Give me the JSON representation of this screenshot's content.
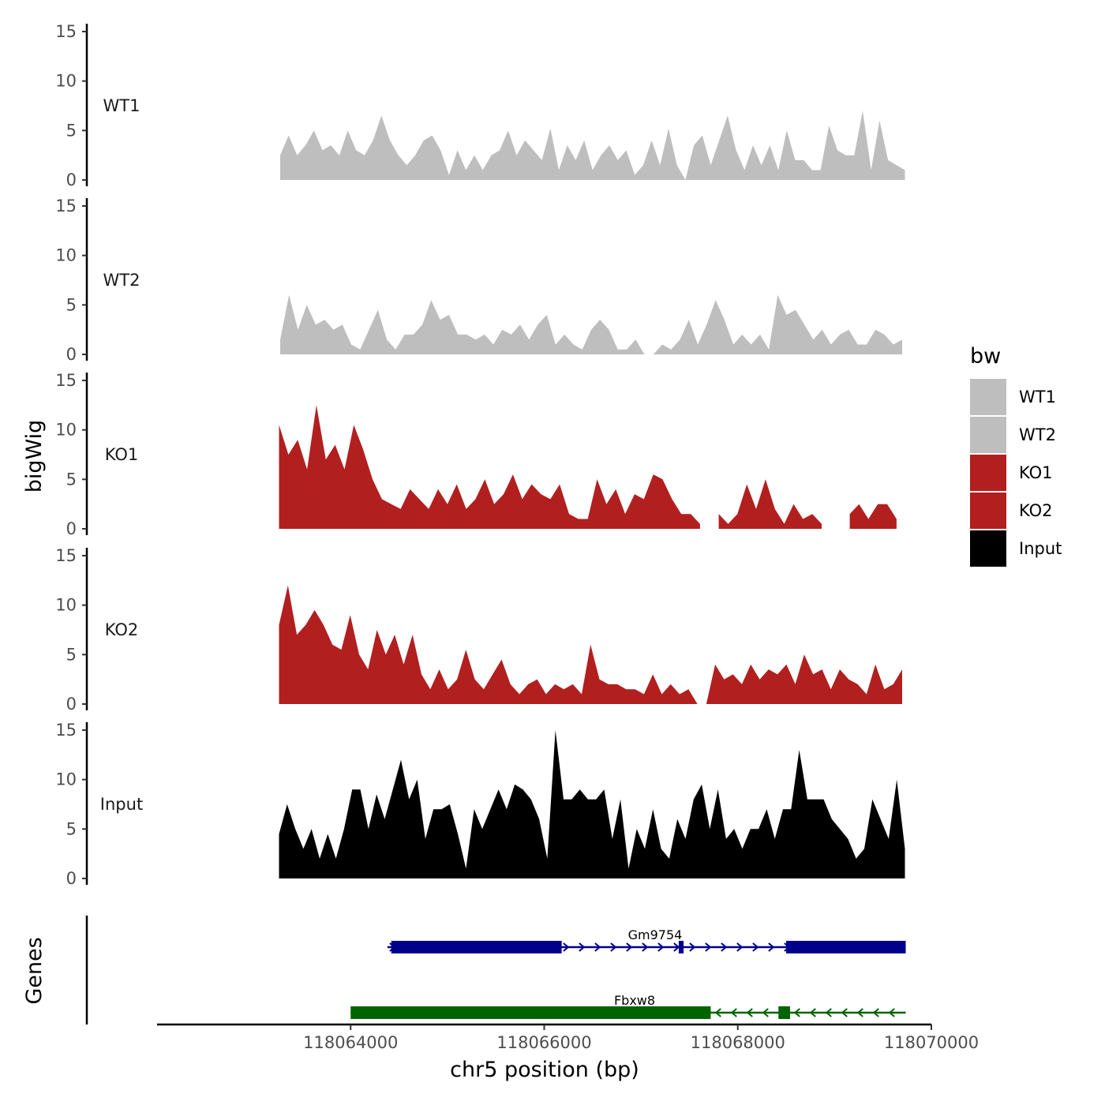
{
  "chart_data": {
    "type": "area",
    "ylabel": "bigWig",
    "xlabel": "chr5 position (bp)",
    "genes_label": "Genes",
    "ylim": [
      0,
      15
    ],
    "yticks": [
      0,
      5,
      10,
      15
    ],
    "xlim": [
      118062000,
      118070000
    ],
    "xticks": [
      118064000,
      118066000,
      118068000,
      118070000
    ],
    "xtick_labels": [
      "118064000",
      "118066000",
      "118068000",
      "118070000"
    ],
    "legend": {
      "title": "bw",
      "entries": [
        {
          "label": "WT1",
          "color": "#bebebe"
        },
        {
          "label": "WT2",
          "color": "#bebebe"
        },
        {
          "label": "KO1",
          "color": "#b21f1f"
        },
        {
          "label": "KO2",
          "color": "#b21f1f"
        },
        {
          "label": "Input",
          "color": "#000000"
        }
      ]
    },
    "tracks": [
      {
        "name": "WT1",
        "color": "#bebebe",
        "x_start": 118063272,
        "x_end": 118069727,
        "values": [
          2.5,
          4.5,
          2.5,
          3.5,
          5,
          3,
          3.5,
          2.5,
          5,
          3,
          2.5,
          4,
          6.5,
          4,
          2.5,
          1.5,
          2.5,
          4,
          4.5,
          3,
          0.5,
          3,
          1,
          2.5,
          1,
          2.5,
          3,
          5,
          2.5,
          4,
          3,
          2,
          5.2,
          1,
          3.5,
          2,
          4,
          1,
          2.5,
          3.5,
          2,
          3,
          0.5,
          1.5,
          4,
          1.5,
          5.2,
          1.5,
          0,
          3.5,
          4.5,
          1.5,
          4,
          6.5,
          3,
          1,
          3.5,
          1.5,
          3.5,
          1,
          5,
          2,
          2,
          1,
          1,
          5.5,
          3,
          2.5,
          2.5,
          7,
          1,
          6,
          2,
          1.5,
          1
        ]
      },
      {
        "name": "WT2",
        "color": "#bebebe",
        "x_start": 118063272,
        "x_end": 118069698,
        "values": [
          1.5,
          6,
          2.5,
          5,
          3,
          3.5,
          2.5,
          3,
          1,
          0.5,
          2.5,
          4.5,
          1.5,
          0.5,
          2,
          2,
          3,
          5.5,
          3.5,
          4,
          2,
          2,
          1.5,
          2,
          1,
          2.5,
          2,
          3,
          1.5,
          3,
          4,
          1,
          2,
          1,
          0.5,
          2.5,
          3.5,
          2.5,
          0.5,
          0.5,
          1.5,
          0,
          0,
          1,
          0.5,
          1.5,
          3.5,
          1,
          3,
          5.5,
          3.5,
          1,
          2,
          1,
          2,
          0.5,
          6,
          4,
          4.5,
          3,
          1.5,
          2.5,
          1,
          2,
          2.5,
          1,
          1,
          2.5,
          2,
          1,
          1.5
        ]
      },
      {
        "name": "KO1",
        "color": "#b21f1f",
        "x_start": 118063260,
        "x_end": 118069640,
        "values": [
          10.5,
          7.5,
          9,
          6,
          12.5,
          7,
          8.5,
          6,
          10.5,
          8,
          5,
          3,
          2.5,
          2,
          4,
          3,
          2,
          4,
          2.5,
          4.5,
          2,
          3,
          5,
          2.5,
          3.5,
          5.5,
          3,
          4.5,
          3.5,
          3,
          4.5,
          1.5,
          1,
          1,
          5,
          2.5,
          4,
          1.5,
          3.5,
          3,
          5.5,
          5,
          3,
          1.5,
          1.5,
          0.5,
          null,
          1.5,
          0.5,
          1.5,
          4.5,
          2,
          5,
          2,
          0.5,
          2.5,
          1,
          1.5,
          0.5,
          null,
          null,
          1.5,
          2.5,
          1,
          2.5,
          2.5,
          1
        ]
      },
      {
        "name": "KO2",
        "color": "#b21f1f",
        "x_start": 118063260,
        "x_end": 118069698,
        "values": [
          8,
          12,
          7,
          8,
          9.5,
          8,
          6,
          5.5,
          9,
          5,
          3.5,
          7.5,
          5,
          7,
          4,
          7,
          3,
          1.5,
          3.5,
          1.5,
          2.5,
          5.5,
          2.5,
          1.5,
          3,
          4.5,
          2,
          1,
          2,
          2.5,
          1,
          2,
          1.5,
          2,
          1,
          6,
          2.5,
          2,
          2,
          1.5,
          1.5,
          1,
          3,
          1,
          2,
          1,
          1.5,
          0,
          0,
          4,
          2.5,
          3,
          2,
          4,
          2.5,
          3.5,
          3,
          4,
          2,
          5,
          3,
          3.5,
          1.5,
          3.5,
          2.5,
          2,
          1,
          4,
          1.5,
          2,
          3.5
        ]
      },
      {
        "name": "Input",
        "color": "#000000",
        "x_start": 118063260,
        "x_end": 118069727,
        "values": [
          4.5,
          7.5,
          5,
          3,
          5,
          2,
          4.5,
          2,
          5,
          9,
          9,
          5,
          8.5,
          6,
          9,
          12,
          8,
          10,
          4,
          7,
          7,
          7.5,
          4.5,
          1,
          7,
          5,
          7,
          9,
          7,
          9.5,
          9,
          8,
          6,
          2,
          15,
          8,
          8,
          9,
          8,
          8,
          9,
          4,
          8,
          1,
          5,
          3,
          7,
          3,
          2,
          6,
          4,
          8,
          9.5,
          5,
          9,
          4,
          5,
          3,
          5,
          5,
          7,
          4,
          7,
          7,
          13,
          8,
          8,
          8,
          6,
          5,
          4,
          2,
          3,
          8,
          6,
          4,
          10,
          3
        ]
      }
    ],
    "genes": [
      {
        "name": "Gm9754",
        "strand": "+",
        "color": "#00008b",
        "line": [
          118064380,
          118069735
        ],
        "exons": [
          [
            118064420,
            118066180
          ],
          [
            118067390,
            118067440
          ],
          [
            118068500,
            118069735
          ]
        ]
      },
      {
        "name": "Fbxw8",
        "strand": "-",
        "color": "#006400",
        "line": [
          118064000,
          118069735
        ],
        "exons": [
          [
            118064000,
            118067720
          ],
          [
            118068420,
            118068540
          ]
        ]
      }
    ]
  }
}
